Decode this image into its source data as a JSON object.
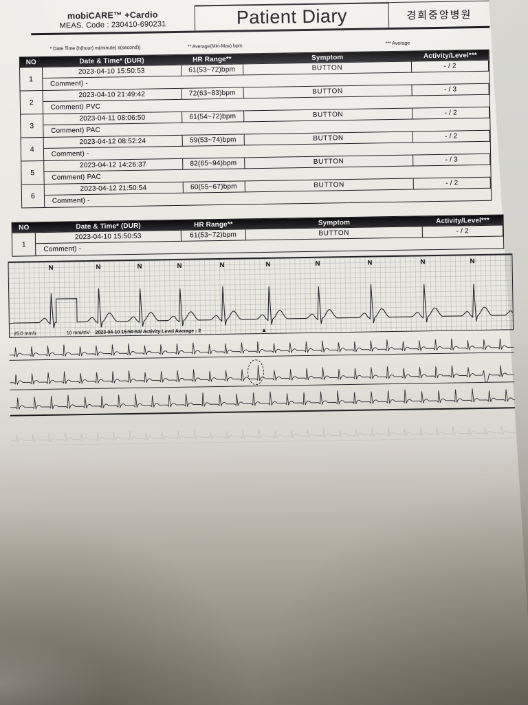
{
  "header": {
    "brand_line1": "mobiCARE™ +Cardio",
    "brand_line2": "MEAS. Code : 230410-690231",
    "title": "Patient Diary",
    "hospital": "경희중앙병원"
  },
  "footnotes": {
    "date_time": "* Date Time (h(hour) m(minute) s(second))",
    "hr_range": "** Average(Min-Max) bpm",
    "activity": "*** Average"
  },
  "columns": {
    "no": "NO",
    "datetime": "Date & Time* (DUR)",
    "hr": "HR Range**",
    "symptom": "Symptom",
    "activity": "Activity/Level***"
  },
  "diary_table": {
    "rows": [
      {
        "no": "1",
        "datetime": "2023-04-10 15:50:53",
        "hr": "61(53~72)bpm",
        "symptom": "BUTTON",
        "activity": "- / 2",
        "comment": "Comment) -"
      },
      {
        "no": "2",
        "datetime": "2023-04-10 21:49:42",
        "hr": "72(63~83)bpm",
        "symptom": "BUTTON",
        "activity": "- / 3",
        "comment": "Comment) PVC"
      },
      {
        "no": "3",
        "datetime": "2023-04-11 08:06:50",
        "hr": "61(54~72)bpm",
        "symptom": "BUTTON",
        "activity": "- / 2",
        "comment": "Comment) PAC"
      },
      {
        "no": "4",
        "datetime": "2023-04-12 08:52:24",
        "hr": "59(53~74)bpm",
        "symptom": "BUTTON",
        "activity": "- / 2",
        "comment": "Comment) -"
      },
      {
        "no": "5",
        "datetime": "2023-04-12 14:26:37",
        "hr": "82(65~94)bpm",
        "symptom": "BUTTON",
        "activity": "- / 3",
        "comment": "Comment) PAC"
      },
      {
        "no": "6",
        "datetime": "2023-04-12 21:50:54",
        "hr": "60(55~67)bpm",
        "symptom": "BUTTON",
        "activity": "- / 2",
        "comment": "Comment) -"
      }
    ]
  },
  "detail_table": {
    "rows": [
      {
        "no": "1",
        "datetime": "2023-04-10 15:50:53",
        "hr": "61(53~72)bpm",
        "symptom": "BUTTON",
        "activity": "- / 2",
        "comment": "Comment) -"
      }
    ]
  },
  "ecg": {
    "beat_labels": [
      "N",
      "N",
      "N",
      "N",
      "N",
      "N",
      "N",
      "N",
      "N",
      "N"
    ],
    "speed": "25.0 mm/s",
    "gain": "10 mm/mV",
    "caption": "2023-04-10 15:50:53/ Activity Level Average : 2",
    "event_marker": "▲",
    "ink_color": "#1c1c20"
  }
}
